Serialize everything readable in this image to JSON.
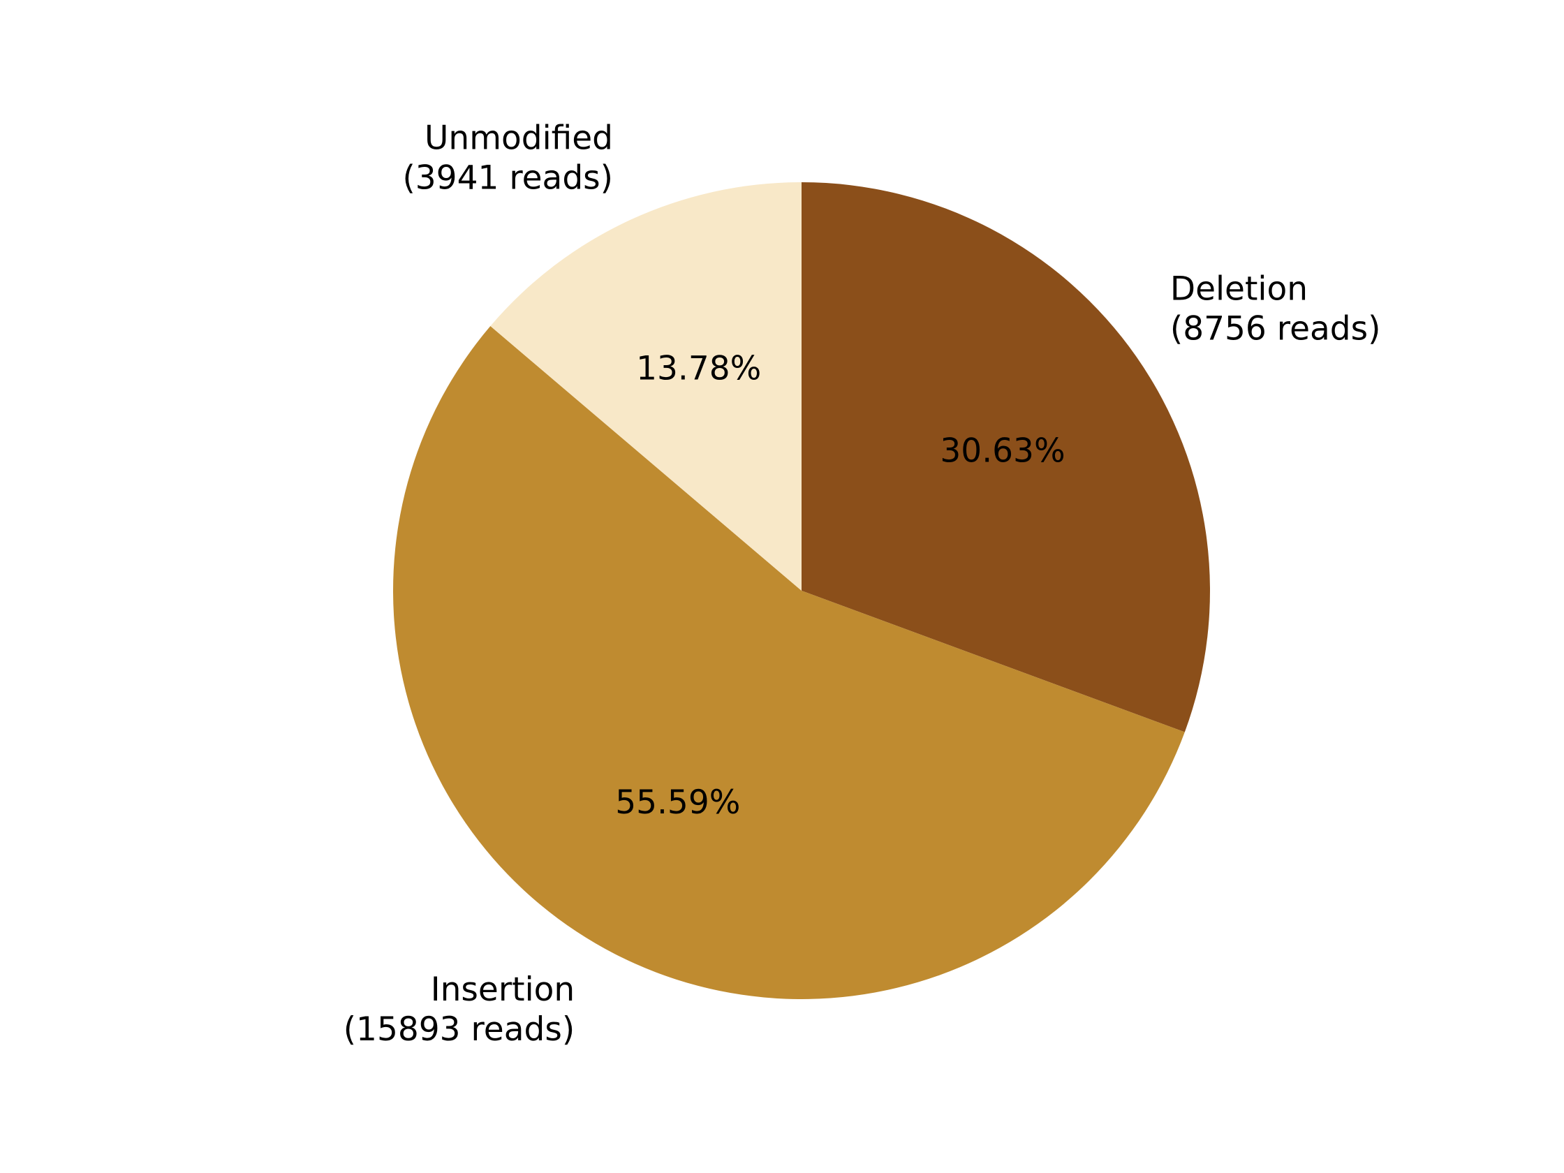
{
  "chart_data": {
    "type": "pie",
    "title": "",
    "start_angle_deg": 90,
    "direction": "clockwise",
    "slices": [
      {
        "label": "Deletion",
        "reads": 8756,
        "reads_text": "(8756 reads)",
        "percent": 30.63,
        "percent_text": "30.63%",
        "color": "#8B4F1A"
      },
      {
        "label": "Insertion",
        "reads": 15893,
        "reads_text": "(15893 reads)",
        "percent": 55.59,
        "percent_text": "55.59%",
        "color": "#BF8B30"
      },
      {
        "label": "Unmodified",
        "reads": 3941,
        "reads_text": "(3941 reads)",
        "percent": 13.78,
        "percent_text": "13.78%",
        "color": "#F8E8C8"
      }
    ]
  }
}
